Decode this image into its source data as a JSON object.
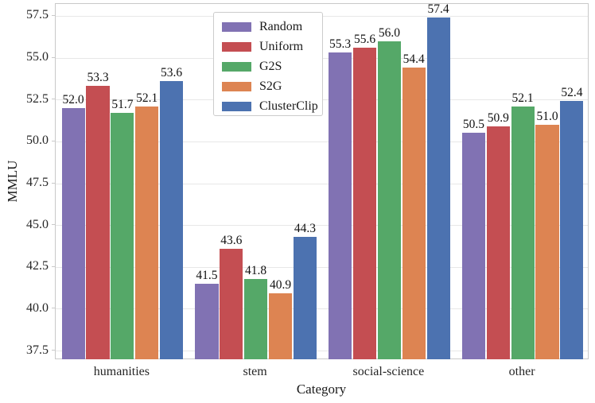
{
  "figure": {
    "background": "#ffffff"
  },
  "style": {
    "grid_color": "#e7e7e7",
    "spine_color": "#c9c9c9",
    "tick_text_color": "#262626",
    "bar_label_color": "#111111"
  },
  "chart_data": {
    "type": "bar",
    "xlabel": "Category",
    "ylabel": "MMLU",
    "categories": [
      "humanities",
      "stem",
      "social-science",
      "other"
    ],
    "series": [
      {
        "name": "Random",
        "color": "#8172b3",
        "values": [
          52.0,
          41.5,
          55.3,
          50.5
        ]
      },
      {
        "name": "Uniform",
        "color": "#c44e52",
        "values": [
          53.3,
          43.6,
          55.6,
          50.9
        ]
      },
      {
        "name": "G2S",
        "color": "#55a868",
        "values": [
          51.7,
          41.8,
          56.0,
          52.1
        ]
      },
      {
        "name": "S2G",
        "color": "#dd8452",
        "values": [
          52.1,
          40.9,
          54.4,
          51.0
        ]
      },
      {
        "name": "ClusterClip",
        "color": "#4c72b0",
        "values": [
          53.6,
          44.3,
          57.4,
          52.4
        ]
      }
    ],
    "yticks": [
      37.5,
      40.0,
      42.5,
      45.0,
      47.5,
      50.0,
      52.5,
      55.0,
      57.5
    ],
    "ylim": [
      36.93,
      58.21
    ],
    "grid": true,
    "bar_value_labels": true,
    "value_label_format": "one-decimal",
    "legend": {
      "position": "upper-center",
      "items": [
        "Random",
        "Uniform",
        "G2S",
        "S2G",
        "ClusterClip"
      ]
    }
  }
}
